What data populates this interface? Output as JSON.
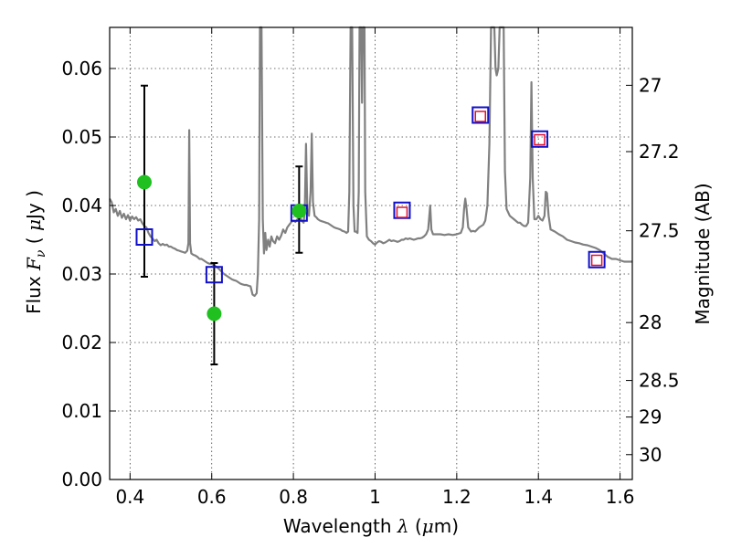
{
  "chart_data": {
    "type": "scatter",
    "xlabel": {
      "main": "Wavelength",
      "symbol": "λ",
      "unit": "(μm)",
      "unit_pre": "(",
      "unit_mu": "μ",
      "unit_post": "m)"
    },
    "ylabel": {
      "main": "Flux",
      "symbol": "F",
      "sub": "ν",
      "unit_pre": "( ",
      "unit_mu": "μ",
      "unit_post": "Jy )"
    },
    "y2label": "Magnitude (AB)",
    "xlim": [
      0.35,
      1.63
    ],
    "ylim": [
      0.0,
      0.066
    ],
    "xticks": [
      0.4,
      0.6,
      0.8,
      1.0,
      1.2,
      1.4,
      1.6
    ],
    "xtick_labels": [
      "0.4",
      "0.6",
      "0.8",
      "1",
      "1.2",
      "1.4",
      "1.6"
    ],
    "yticks": [
      0.0,
      0.01,
      0.02,
      0.03,
      0.04,
      0.05,
      0.06
    ],
    "ytick_labels": [
      "0.00",
      "0.01",
      "0.02",
      "0.03",
      "0.04",
      "0.05",
      "0.06"
    ],
    "mag_ticks": [
      27,
      27.2,
      27.5,
      28,
      28.5,
      29,
      30
    ],
    "mag_tick_labels": [
      "27",
      "27.2",
      "27.5",
      "28",
      "28.5",
      "29",
      "30"
    ],
    "grid": true,
    "colors": {
      "spectrum": "#808080",
      "observed": "#1fc01f",
      "model_blue": "#1010c8",
      "model_red": "#e01030",
      "errorbar": "#000000"
    },
    "spectrum": [
      [
        0.35,
        0.041
      ],
      [
        0.355,
        0.0405
      ],
      [
        0.36,
        0.039
      ],
      [
        0.365,
        0.0395
      ],
      [
        0.37,
        0.0385
      ],
      [
        0.375,
        0.0392
      ],
      [
        0.38,
        0.0382
      ],
      [
        0.385,
        0.0388
      ],
      [
        0.39,
        0.038
      ],
      [
        0.395,
        0.0386
      ],
      [
        0.4,
        0.0378
      ],
      [
        0.405,
        0.0384
      ],
      [
        0.41,
        0.038
      ],
      [
        0.415,
        0.0383
      ],
      [
        0.42,
        0.0378
      ],
      [
        0.425,
        0.038
      ],
      [
        0.43,
        0.0374
      ],
      [
        0.435,
        0.037
      ],
      [
        0.44,
        0.0368
      ],
      [
        0.445,
        0.036
      ],
      [
        0.45,
        0.0355
      ],
      [
        0.455,
        0.0352
      ],
      [
        0.46,
        0.0348
      ],
      [
        0.465,
        0.035
      ],
      [
        0.47,
        0.0345
      ],
      [
        0.475,
        0.0342
      ],
      [
        0.48,
        0.0344
      ],
      [
        0.485,
        0.0342
      ],
      [
        0.49,
        0.0343
      ],
      [
        0.495,
        0.034
      ],
      [
        0.5,
        0.034
      ],
      [
        0.505,
        0.0338
      ],
      [
        0.51,
        0.0337
      ],
      [
        0.515,
        0.0335
      ],
      [
        0.52,
        0.0334
      ],
      [
        0.525,
        0.0333
      ],
      [
        0.53,
        0.0332
      ],
      [
        0.535,
        0.0331
      ],
      [
        0.54,
        0.0334
      ],
      [
        0.543,
        0.0345
      ],
      [
        0.545,
        0.051
      ],
      [
        0.547,
        0.0345
      ],
      [
        0.55,
        0.033
      ],
      [
        0.555,
        0.0328
      ],
      [
        0.56,
        0.0327
      ],
      [
        0.565,
        0.0325
      ],
      [
        0.57,
        0.0322
      ],
      [
        0.575,
        0.0322
      ],
      [
        0.58,
        0.032
      ],
      [
        0.585,
        0.0318
      ],
      [
        0.59,
        0.0316
      ],
      [
        0.595,
        0.0315
      ],
      [
        0.6,
        0.0315
      ],
      [
        0.605,
        0.0313
      ],
      [
        0.61,
        0.0311
      ],
      [
        0.615,
        0.0309
      ],
      [
        0.62,
        0.0306
      ],
      [
        0.625,
        0.0303
      ],
      [
        0.63,
        0.03
      ],
      [
        0.635,
        0.0298
      ],
      [
        0.64,
        0.0296
      ],
      [
        0.645,
        0.0294
      ],
      [
        0.65,
        0.0292
      ],
      [
        0.655,
        0.0291
      ],
      [
        0.66,
        0.029
      ],
      [
        0.665,
        0.0288
      ],
      [
        0.67,
        0.0286
      ],
      [
        0.675,
        0.0285
      ],
      [
        0.68,
        0.0284
      ],
      [
        0.685,
        0.0284
      ],
      [
        0.69,
        0.0283
      ],
      [
        0.695,
        0.0282
      ],
      [
        0.7,
        0.027
      ],
      [
        0.705,
        0.0268
      ],
      [
        0.71,
        0.0272
      ],
      [
        0.713,
        0.03
      ],
      [
        0.716,
        0.038
      ],
      [
        0.718,
        0.066
      ],
      [
        0.722,
        0.066
      ],
      [
        0.725,
        0.038
      ],
      [
        0.728,
        0.033
      ],
      [
        0.731,
        0.036
      ],
      [
        0.734,
        0.0335
      ],
      [
        0.738,
        0.035
      ],
      [
        0.742,
        0.034
      ],
      [
        0.746,
        0.0355
      ],
      [
        0.75,
        0.0348
      ],
      [
        0.755,
        0.0345
      ],
      [
        0.76,
        0.0355
      ],
      [
        0.765,
        0.035
      ],
      [
        0.77,
        0.0356
      ],
      [
        0.775,
        0.0365
      ],
      [
        0.78,
        0.036
      ],
      [
        0.785,
        0.0368
      ],
      [
        0.79,
        0.0372
      ],
      [
        0.795,
        0.0376
      ],
      [
        0.8,
        0.0378
      ],
      [
        0.805,
        0.0376
      ],
      [
        0.81,
        0.038
      ],
      [
        0.815,
        0.0385
      ],
      [
        0.82,
        0.0378
      ],
      [
        0.825,
        0.0375
      ],
      [
        0.828,
        0.0395
      ],
      [
        0.831,
        0.049
      ],
      [
        0.834,
        0.0395
      ],
      [
        0.838,
        0.0385
      ],
      [
        0.842,
        0.042
      ],
      [
        0.845,
        0.0505
      ],
      [
        0.848,
        0.0405
      ],
      [
        0.852,
        0.0385
      ],
      [
        0.856,
        0.0383
      ],
      [
        0.86,
        0.038
      ],
      [
        0.865,
        0.0378
      ],
      [
        0.87,
        0.0377
      ],
      [
        0.875,
        0.0376
      ],
      [
        0.88,
        0.0375
      ],
      [
        0.885,
        0.0374
      ],
      [
        0.89,
        0.0372
      ],
      [
        0.895,
        0.037
      ],
      [
        0.9,
        0.0368
      ],
      [
        0.905,
        0.0367
      ],
      [
        0.91,
        0.0366
      ],
      [
        0.915,
        0.0365
      ],
      [
        0.92,
        0.0363
      ],
      [
        0.925,
        0.0362
      ],
      [
        0.93,
        0.036
      ],
      [
        0.934,
        0.0362
      ],
      [
        0.937,
        0.042
      ],
      [
        0.94,
        0.066
      ],
      [
        0.944,
        0.066
      ],
      [
        0.947,
        0.04
      ],
      [
        0.95,
        0.0362
      ],
      [
        0.953,
        0.0362
      ],
      [
        0.957,
        0.036
      ],
      [
        0.96,
        0.042
      ],
      [
        0.962,
        0.066
      ],
      [
        0.966,
        0.066
      ],
      [
        0.968,
        0.055
      ],
      [
        0.97,
        0.066
      ],
      [
        0.974,
        0.066
      ],
      [
        0.976,
        0.042
      ],
      [
        0.98,
        0.0355
      ],
      [
        0.985,
        0.035
      ],
      [
        0.99,
        0.0348
      ],
      [
        0.995,
        0.0345
      ],
      [
        1.0,
        0.0343
      ],
      [
        1.005,
        0.0346
      ],
      [
        1.01,
        0.0348
      ],
      [
        1.015,
        0.0347
      ],
      [
        1.02,
        0.0345
      ],
      [
        1.025,
        0.0346
      ],
      [
        1.03,
        0.0348
      ],
      [
        1.035,
        0.035
      ],
      [
        1.04,
        0.0348
      ],
      [
        1.045,
        0.0349
      ],
      [
        1.05,
        0.0348
      ],
      [
        1.055,
        0.0347
      ],
      [
        1.06,
        0.0348
      ],
      [
        1.065,
        0.035
      ],
      [
        1.07,
        0.035
      ],
      [
        1.075,
        0.0352
      ],
      [
        1.08,
        0.0351
      ],
      [
        1.085,
        0.0352
      ],
      [
        1.09,
        0.0351
      ],
      [
        1.095,
        0.035
      ],
      [
        1.1,
        0.0351
      ],
      [
        1.105,
        0.0352
      ],
      [
        1.11,
        0.0352
      ],
      [
        1.115,
        0.0353
      ],
      [
        1.12,
        0.0355
      ],
      [
        1.125,
        0.0358
      ],
      [
        1.13,
        0.0365
      ],
      [
        1.135,
        0.04
      ],
      [
        1.138,
        0.0365
      ],
      [
        1.142,
        0.0358
      ],
      [
        1.15,
        0.0358
      ],
      [
        1.16,
        0.0358
      ],
      [
        1.17,
        0.0357
      ],
      [
        1.18,
        0.0358
      ],
      [
        1.19,
        0.0357
      ],
      [
        1.2,
        0.0358
      ],
      [
        1.21,
        0.036
      ],
      [
        1.215,
        0.0368
      ],
      [
        1.218,
        0.0395
      ],
      [
        1.221,
        0.041
      ],
      [
        1.224,
        0.0395
      ],
      [
        1.228,
        0.0368
      ],
      [
        1.235,
        0.0362
      ],
      [
        1.24,
        0.0363
      ],
      [
        1.245,
        0.0362
      ],
      [
        1.25,
        0.0365
      ],
      [
        1.255,
        0.0368
      ],
      [
        1.26,
        0.037
      ],
      [
        1.265,
        0.0372
      ],
      [
        1.27,
        0.0378
      ],
      [
        1.275,
        0.04
      ],
      [
        1.28,
        0.049
      ],
      [
        1.284,
        0.066
      ],
      [
        1.292,
        0.066
      ],
      [
        1.295,
        0.06
      ],
      [
        1.298,
        0.059
      ],
      [
        1.302,
        0.06
      ],
      [
        1.305,
        0.066
      ],
      [
        1.315,
        0.066
      ],
      [
        1.318,
        0.045
      ],
      [
        1.322,
        0.0395
      ],
      [
        1.33,
        0.0385
      ],
      [
        1.34,
        0.038
      ],
      [
        1.35,
        0.0375
      ],
      [
        1.355,
        0.0375
      ],
      [
        1.36,
        0.0372
      ],
      [
        1.365,
        0.037
      ],
      [
        1.37,
        0.037
      ],
      [
        1.375,
        0.0375
      ],
      [
        1.38,
        0.044
      ],
      [
        1.383,
        0.058
      ],
      [
        1.386,
        0.044
      ],
      [
        1.39,
        0.038
      ],
      [
        1.395,
        0.038
      ],
      [
        1.4,
        0.0385
      ],
      [
        1.405,
        0.038
      ],
      [
        1.41,
        0.0378
      ],
      [
        1.415,
        0.0385
      ],
      [
        1.418,
        0.042
      ],
      [
        1.421,
        0.0418
      ],
      [
        1.425,
        0.0385
      ],
      [
        1.43,
        0.0365
      ],
      [
        1.44,
        0.0362
      ],
      [
        1.45,
        0.0358
      ],
      [
        1.46,
        0.0355
      ],
      [
        1.47,
        0.035
      ],
      [
        1.48,
        0.0348
      ],
      [
        1.49,
        0.0346
      ],
      [
        1.5,
        0.0345
      ],
      [
        1.51,
        0.0343
      ],
      [
        1.52,
        0.0342
      ],
      [
        1.53,
        0.034
      ],
      [
        1.54,
        0.0338
      ],
      [
        1.55,
        0.0335
      ],
      [
        1.56,
        0.033
      ],
      [
        1.57,
        0.0325
      ],
      [
        1.58,
        0.0322
      ],
      [
        1.59,
        0.0322
      ],
      [
        1.6,
        0.032
      ],
      [
        1.61,
        0.0318
      ],
      [
        1.62,
        0.0318
      ],
      [
        1.63,
        0.0318
      ]
    ],
    "observed_points": [
      {
        "x": 0.435,
        "y": 0.0434,
        "yerr_low": 0.0296,
        "yerr_high": 0.0575
      },
      {
        "x": 0.606,
        "y": 0.0242,
        "yerr_low": 0.0168,
        "yerr_high": 0.0316
      },
      {
        "x": 0.814,
        "y": 0.0392,
        "yerr_low": 0.0331,
        "yerr_high": 0.0457
      }
    ],
    "model_blue_points": [
      {
        "x": 0.435,
        "y": 0.0354
      },
      {
        "x": 0.606,
        "y": 0.0299
      },
      {
        "x": 0.814,
        "y": 0.0389
      },
      {
        "x": 1.066,
        "y": 0.0393
      },
      {
        "x": 1.258,
        "y": 0.0532
      },
      {
        "x": 1.403,
        "y": 0.0497
      },
      {
        "x": 1.543,
        "y": 0.0321
      }
    ],
    "model_red_points": [
      {
        "x": 1.066,
        "y": 0.039
      },
      {
        "x": 1.258,
        "y": 0.053
      },
      {
        "x": 1.403,
        "y": 0.0496
      },
      {
        "x": 1.543,
        "y": 0.032
      }
    ]
  }
}
